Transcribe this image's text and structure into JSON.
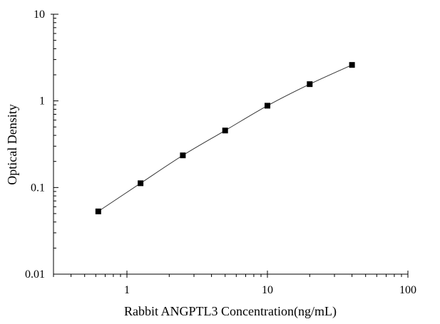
{
  "chart_data": {
    "type": "line",
    "title": "",
    "xlabel": "Rabbit ANGPTL3 Concentration(ng/mL)",
    "ylabel": "Optical Density",
    "xscale": "log",
    "yscale": "log",
    "xlim": [
      0.3,
      100
    ],
    "ylim": [
      0.01,
      10
    ],
    "xticks": [
      "1",
      "10",
      "100"
    ],
    "yticks": [
      "0.01",
      "0.1",
      "1",
      "10"
    ],
    "grid": false,
    "legend": "none",
    "marker": "square",
    "color": "#000000",
    "series": [
      {
        "x": [
          0.625,
          1.25,
          2.5,
          5,
          10,
          20,
          40
        ],
        "y": [
          0.053,
          0.112,
          0.235,
          0.455,
          0.88,
          1.56,
          2.6
        ]
      }
    ]
  }
}
